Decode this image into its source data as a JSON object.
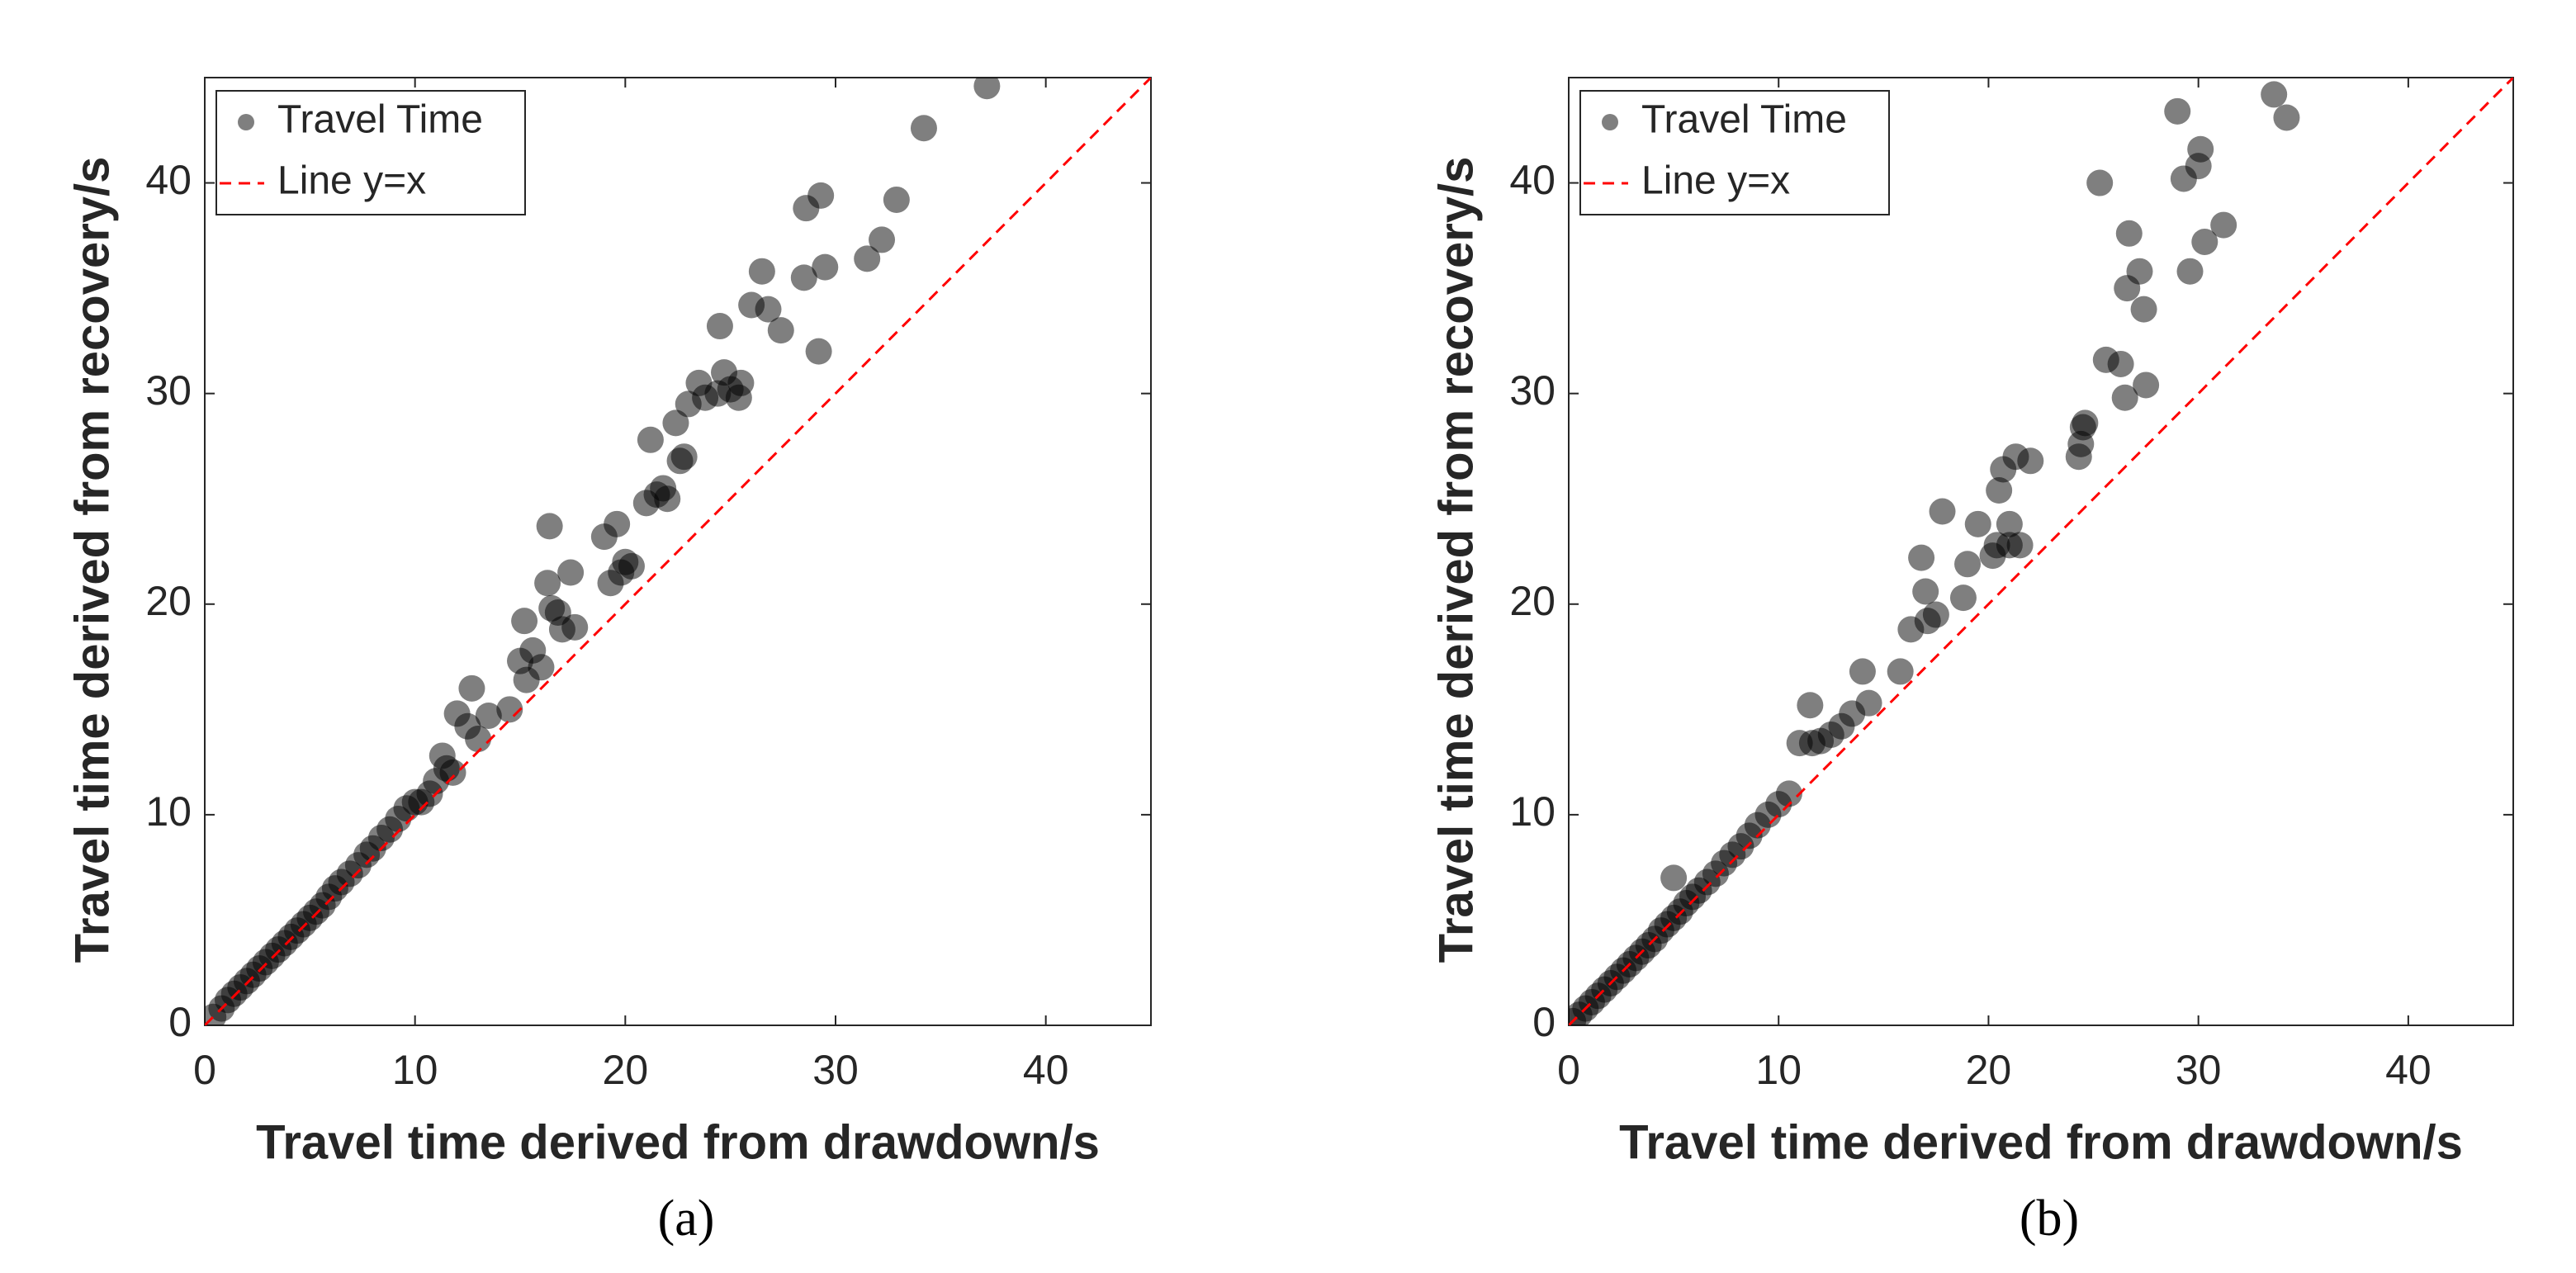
{
  "chart_data": [
    {
      "type": "scatter",
      "caption": "(a)",
      "xlabel": "Travel time derived from drawdown/s",
      "ylabel": "Travel time derived from recovery/s",
      "xlim": [
        0,
        45
      ],
      "ylim": [
        0,
        45
      ],
      "xticks": [
        0,
        10,
        20,
        30,
        40
      ],
      "yticks": [
        0,
        10,
        20,
        30,
        40
      ],
      "series": [
        {
          "name": "Travel Time",
          "color": "#000000",
          "type": "scatter",
          "x": [
            0.4,
            0.8,
            1.1,
            1.4,
            1.7,
            2.0,
            2.3,
            2.6,
            2.9,
            3.2,
            3.5,
            3.8,
            4.1,
            4.4,
            4.7,
            5.0,
            5.3,
            5.6,
            5.9,
            6.2,
            6.5,
            6.9,
            7.3,
            7.7,
            8.0,
            8.4,
            8.8,
            9.2,
            9.6,
            10.0,
            10.3,
            10.7,
            11.0,
            11.3,
            11.5,
            11.8,
            12.0,
            12.5,
            12.7,
            13.0,
            13.5,
            14.5,
            15.0,
            15.2,
            15.3,
            15.6,
            16.0,
            16.3,
            16.4,
            16.5,
            16.8,
            17.0,
            17.4,
            17.6,
            19.0,
            19.3,
            19.6,
            19.8,
            20.0,
            20.3,
            21.0,
            21.2,
            21.5,
            21.8,
            22.0,
            22.4,
            22.6,
            22.8,
            23.0,
            23.5,
            23.8,
            24.4,
            24.5,
            24.7,
            25.0,
            25.4,
            25.5,
            26.0,
            26.5,
            26.8,
            27.4,
            28.5,
            28.6,
            29.2,
            29.3,
            29.5,
            31.5,
            32.2,
            32.9,
            34.2,
            37.2
          ],
          "y": [
            0.4,
            0.8,
            1.2,
            1.5,
            1.8,
            2.1,
            2.4,
            2.7,
            3.0,
            3.3,
            3.6,
            3.9,
            4.2,
            4.5,
            4.8,
            5.1,
            5.4,
            5.7,
            6.1,
            6.5,
            6.8,
            7.2,
            7.6,
            8.1,
            8.4,
            8.9,
            9.3,
            9.8,
            10.3,
            10.6,
            10.6,
            11.0,
            11.6,
            12.8,
            12.2,
            12.0,
            14.8,
            14.2,
            16.0,
            13.6,
            14.7,
            15.0,
            17.3,
            19.2,
            16.4,
            17.8,
            17.0,
            21.0,
            23.7,
            19.8,
            19.6,
            18.8,
            21.5,
            18.9,
            23.2,
            21.0,
            23.8,
            21.5,
            22.0,
            21.8,
            24.8,
            27.8,
            25.2,
            25.5,
            25.0,
            28.6,
            26.8,
            27.0,
            29.5,
            30.5,
            29.8,
            30.0,
            33.2,
            31.0,
            30.2,
            29.8,
            30.5,
            34.2,
            35.8,
            34.0,
            33.0,
            35.5,
            38.8,
            32.0,
            39.4,
            36.0,
            36.4,
            37.3,
            39.2,
            42.6,
            44.6
          ]
        },
        {
          "name": "Line y=x",
          "color": "#ff0000",
          "type": "line",
          "x": [
            0,
            45
          ],
          "y": [
            0,
            45
          ]
        }
      ],
      "legend": "upper left"
    },
    {
      "type": "scatter",
      "caption": "(b)",
      "xlabel": "Travel time derived from drawdown/s",
      "ylabel": "Travel time derived from recovery/s",
      "xlim": [
        0,
        45
      ],
      "ylim": [
        0,
        45
      ],
      "xticks": [
        0,
        10,
        20,
        30,
        40
      ],
      "yticks": [
        0,
        10,
        20,
        30,
        40
      ],
      "series": [
        {
          "name": "Travel Time",
          "color": "#000000",
          "type": "scatter",
          "x": [
            0.2,
            0.5,
            0.8,
            1.1,
            1.4,
            1.7,
            2.0,
            2.3,
            2.6,
            2.9,
            3.2,
            3.5,
            3.8,
            4.1,
            4.4,
            4.7,
            5.0,
            5.0,
            5.3,
            5.6,
            5.9,
            6.2,
            6.6,
            7.0,
            7.4,
            7.8,
            8.2,
            8.6,
            9.0,
            9.5,
            10.0,
            10.5,
            11.0,
            11.5,
            11.6,
            12.0,
            12.5,
            13.0,
            13.5,
            14.0,
            14.3,
            15.8,
            16.3,
            16.8,
            17.0,
            17.1,
            17.5,
            17.8,
            18.8,
            19.0,
            19.5,
            20.2,
            20.4,
            20.5,
            20.7,
            21.0,
            21.0,
            21.3,
            21.5,
            22.0,
            24.3,
            24.4,
            24.5,
            24.6,
            25.3,
            25.6,
            26.3,
            26.5,
            26.6,
            26.7,
            27.2,
            27.4,
            27.5,
            29.0,
            29.3,
            29.6,
            30.0,
            30.1,
            30.3,
            31.2,
            33.6,
            34.2
          ],
          "y": [
            0.2,
            0.5,
            0.8,
            1.1,
            1.4,
            1.7,
            2.0,
            2.3,
            2.6,
            2.9,
            3.2,
            3.5,
            3.8,
            4.1,
            4.5,
            4.8,
            5.1,
            7.0,
            5.4,
            5.8,
            6.1,
            6.4,
            6.8,
            7.2,
            7.7,
            8.1,
            8.5,
            9.0,
            9.5,
            10.0,
            10.5,
            11.0,
            13.4,
            15.2,
            13.4,
            13.5,
            13.8,
            14.2,
            14.8,
            16.8,
            15.3,
            16.8,
            18.8,
            22.2,
            20.6,
            19.2,
            19.5,
            24.4,
            20.3,
            21.9,
            23.8,
            22.3,
            22.8,
            25.4,
            26.4,
            23.8,
            22.8,
            27.0,
            22.8,
            26.8,
            27.0,
            27.6,
            28.4,
            28.6,
            40.0,
            31.6,
            31.4,
            29.8,
            35.0,
            37.6,
            35.8,
            34.0,
            30.4,
            43.4,
            40.2,
            35.8,
            40.8,
            41.6,
            37.2,
            38.0,
            44.2,
            43.1
          ]
        },
        {
          "name": "Line y=x",
          "color": "#ff0000",
          "type": "line",
          "x": [
            0,
            45
          ],
          "y": [
            0,
            45
          ]
        }
      ],
      "legend": "upper left"
    }
  ]
}
